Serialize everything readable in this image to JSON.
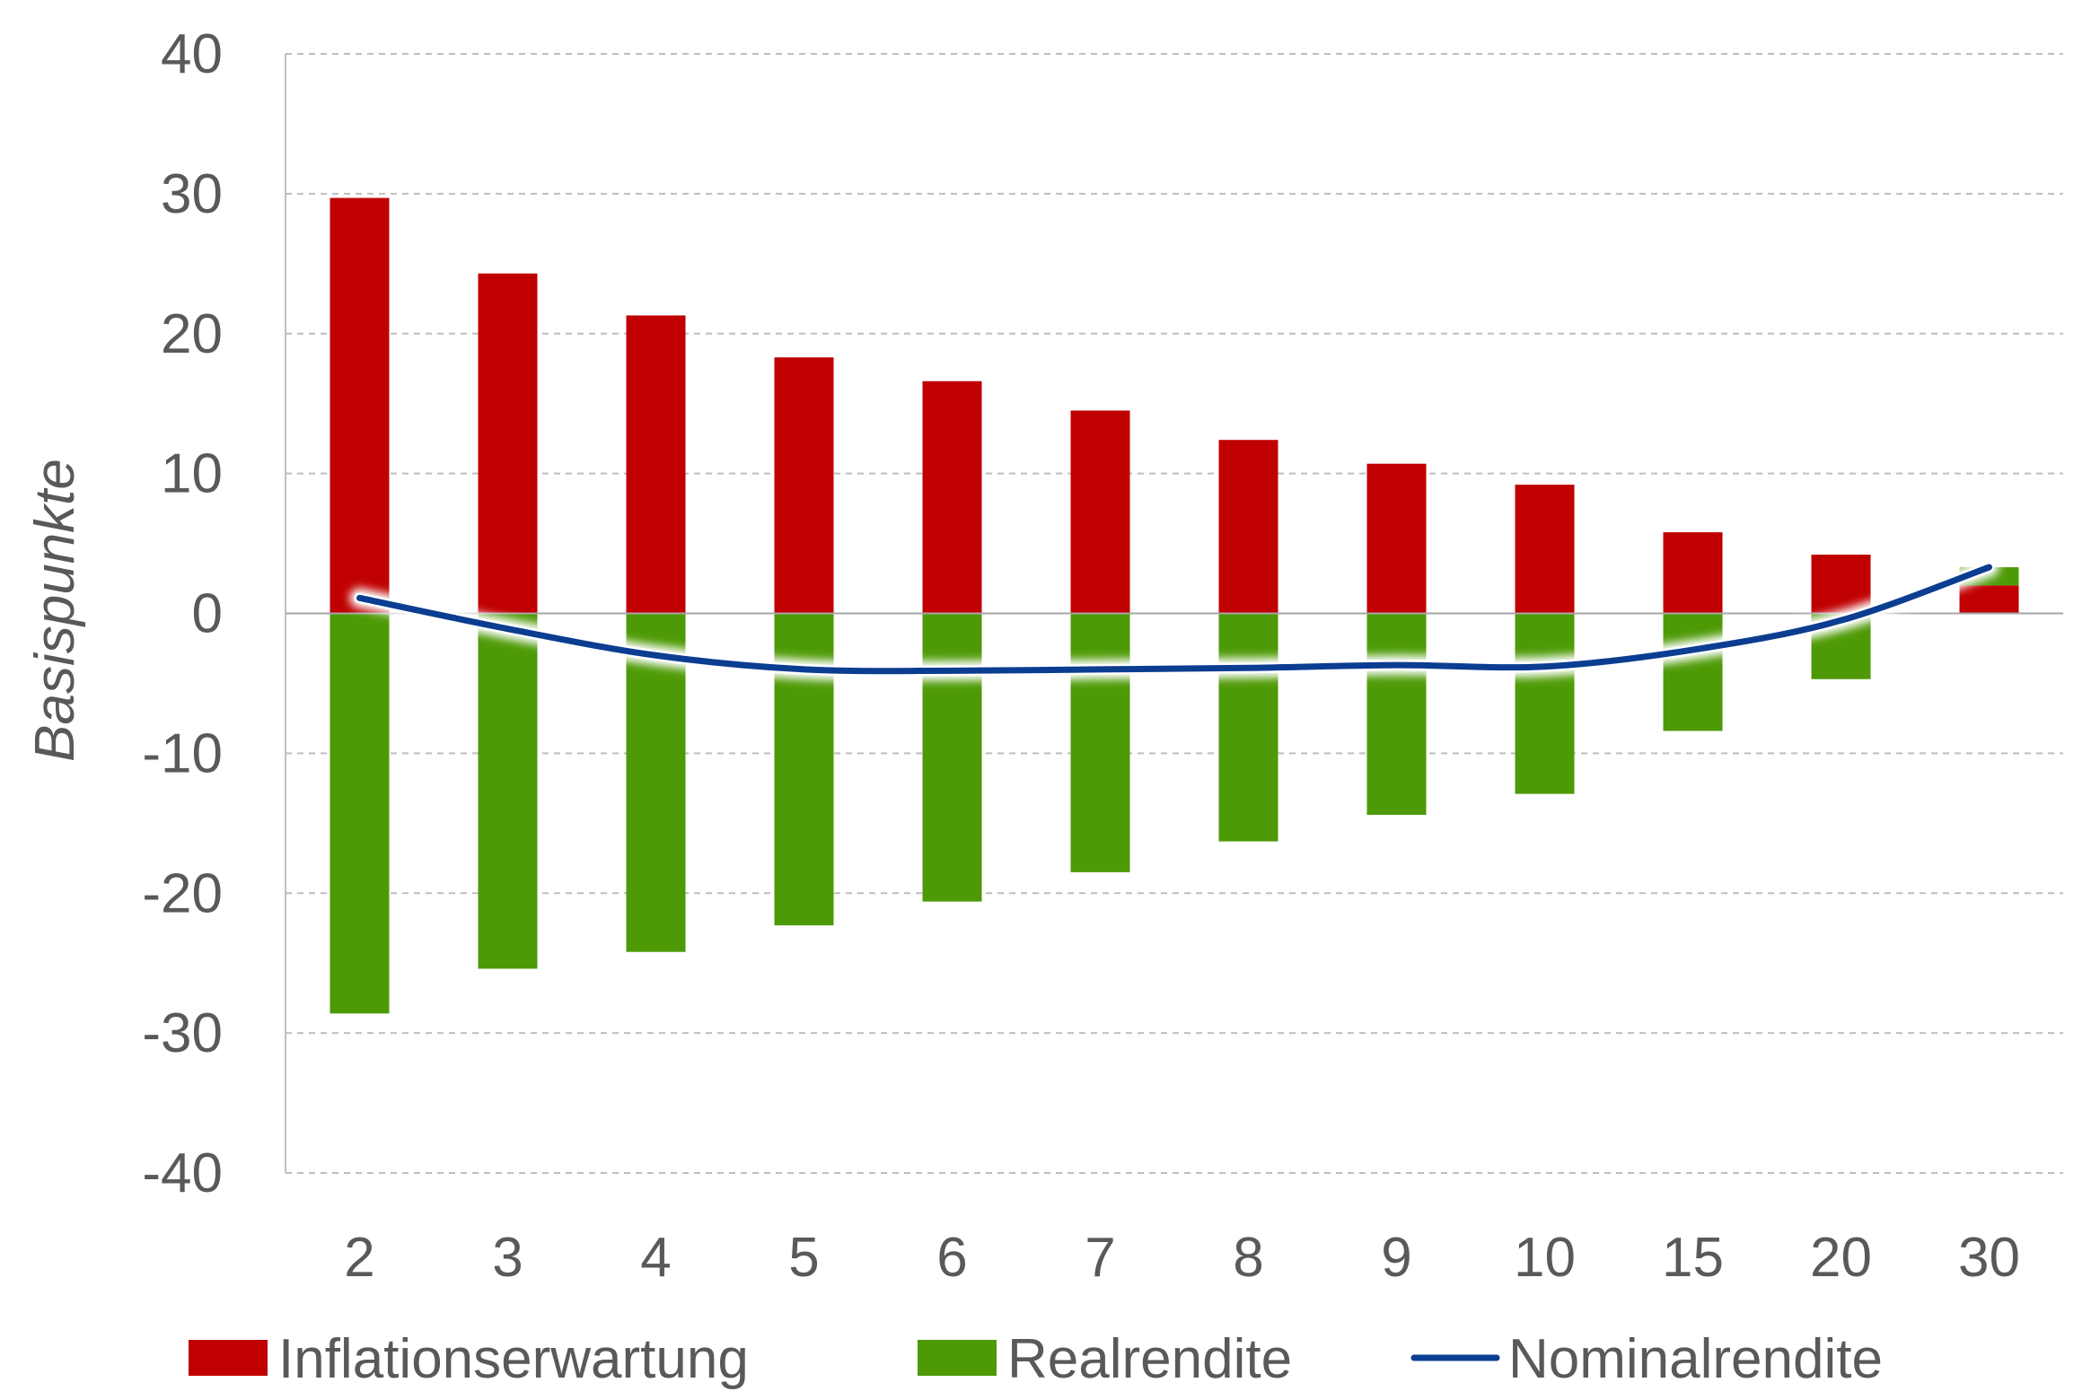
{
  "chart_data": {
    "type": "bar",
    "ylabel": "Basispunkte",
    "xlabel": "",
    "ylim": [
      -40,
      40
    ],
    "yticks": [
      40,
      30,
      20,
      10,
      0,
      -10,
      -20,
      -30,
      -40
    ],
    "categories": [
      "2",
      "3",
      "4",
      "5",
      "6",
      "7",
      "8",
      "9",
      "10",
      "15",
      "20",
      "30"
    ],
    "series": [
      {
        "name": "Inflationserwartung",
        "kind": "bar",
        "color": "#c00000",
        "values": [
          29.7,
          24.3,
          21.3,
          18.3,
          16.6,
          14.5,
          12.4,
          10.7,
          9.2,
          5.8,
          4.2,
          2.0
        ]
      },
      {
        "name": "Realrendite",
        "kind": "bar",
        "color": "#4e9a06",
        "values": [
          -28.6,
          -25.4,
          -24.2,
          -22.3,
          -20.6,
          -18.5,
          -16.3,
          -14.4,
          -12.9,
          -8.4,
          -4.7,
          1.3
        ]
      },
      {
        "name": "Nominalrendite",
        "kind": "line",
        "color": "#0b3d91",
        "values": [
          1.1,
          -1.1,
          -3.0,
          -4.0,
          -4.1,
          -4.0,
          -3.9,
          -3.7,
          -3.8,
          -2.6,
          -0.5,
          3.3
        ]
      }
    ],
    "grid": true,
    "legend_position": "bottom"
  }
}
